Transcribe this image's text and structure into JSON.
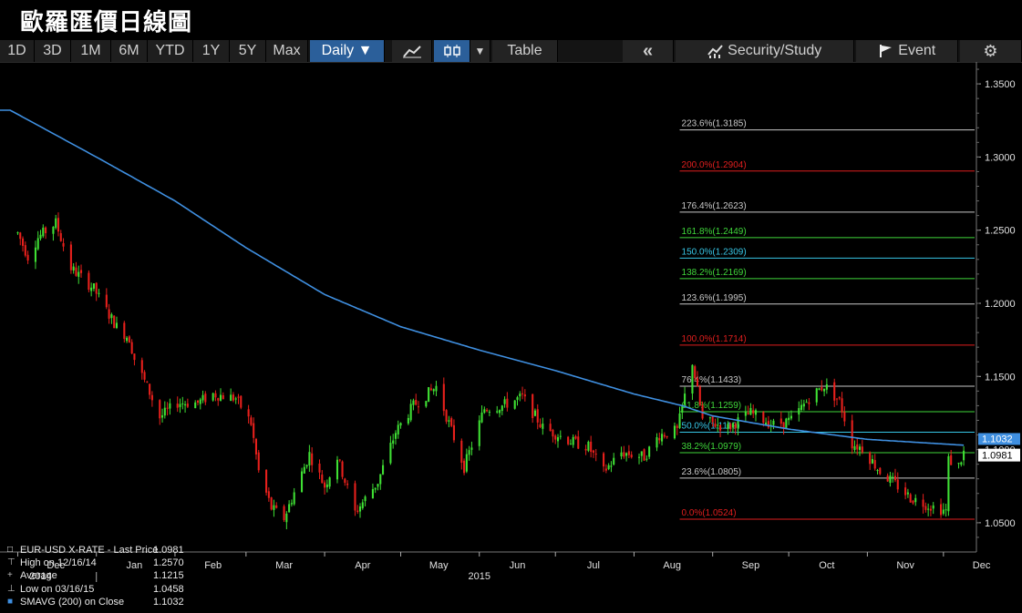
{
  "title": "歐羅匯價日線圖",
  "toolbar": {
    "periods": [
      "1D",
      "3D",
      "1M",
      "6M",
      "YTD",
      "1Y",
      "5Y",
      "Max"
    ],
    "interval": "Daily ▼",
    "chart_type_icon": "line-chart-icon",
    "candle_icon": "candlestick-icon",
    "dropdown_arrow": "▼",
    "table": "Table",
    "collapse": "«",
    "security_study": "Security/Study",
    "event": "Event",
    "settings_icon": "gear-icon"
  },
  "legend": [
    {
      "marker": "□",
      "label": "EUR-USD X-RATE - Last Price",
      "value": "1.0981"
    },
    {
      "marker": "⊤",
      "label": "High on 12/16/14",
      "value": "1.2570"
    },
    {
      "marker": "+",
      "label": "Average",
      "value": "1.1215"
    },
    {
      "marker": "⊥",
      "label": "Low on 03/16/15",
      "value": "1.0458"
    },
    {
      "marker": "■",
      "label": "SMAVG (200) on Close",
      "value": "1.1032"
    }
  ],
  "colors": {
    "background": "#000000",
    "up": "#3fe034",
    "down": "#e8201c",
    "sma": "#3f8fe0",
    "grid": "#2a2a2a",
    "fib_white": "#c8c8c8",
    "fib_red": "#e01e1e",
    "fib_green": "#3fd63a",
    "fib_cyan": "#37c6e6"
  },
  "chart_data": {
    "type": "candlestick",
    "title": "",
    "ylim": [
      1.03,
      1.365
    ],
    "y_ticks": [
      "1.3500",
      "1.3000",
      "1.2500",
      "1.2000",
      "1.1500",
      "1.1000",
      "1.0500"
    ],
    "x_month_labels": [
      "Dec",
      "Jan",
      "Feb",
      "Mar",
      "Apr",
      "May",
      "Jun",
      "Jul",
      "Aug",
      "Sep",
      "Oct",
      "Nov",
      "Dec"
    ],
    "x_year_labels": [
      "2014",
      "2015"
    ],
    "last_price_label": "1.0981",
    "sma_price_label": "1.1032",
    "fibonacci_levels": [
      {
        "label": "223.6%(1.3185)",
        "value": 1.3185,
        "color": "white"
      },
      {
        "label": "200.0%(1.2904)",
        "value": 1.2904,
        "color": "red"
      },
      {
        "label": "176.4%(1.2623)",
        "value": 1.2623,
        "color": "white"
      },
      {
        "label": "161.8%(1.2449)",
        "value": 1.2449,
        "color": "green"
      },
      {
        "label": "150.0%(1.2309)",
        "value": 1.2309,
        "color": "cyan"
      },
      {
        "label": "138.2%(1.2169)",
        "value": 1.2169,
        "color": "green"
      },
      {
        "label": "123.6%(1.1995)",
        "value": 1.1995,
        "color": "white"
      },
      {
        "label": "100.0%(1.1714)",
        "value": 1.1714,
        "color": "red"
      },
      {
        "label": "76.4%(1.1433)",
        "value": 1.1433,
        "color": "white"
      },
      {
        "label": "61.8%(1.1259)",
        "value": 1.1259,
        "color": "green"
      },
      {
        "label": "50.0%(1.1119)",
        "value": 1.1119,
        "color": "cyan"
      },
      {
        "label": "38.2%(1.0979)",
        "value": 1.0979,
        "color": "green"
      },
      {
        "label": "23.6%(1.0805)",
        "value": 1.0805,
        "color": "white"
      },
      {
        "label": "0.0%(1.0524)",
        "value": 1.0524,
        "color": "red"
      }
    ],
    "price_anchors": [
      [
        "2014-12-01",
        1.248
      ],
      [
        "2014-12-05",
        1.232
      ],
      [
        "2014-12-09",
        1.245
      ],
      [
        "2014-12-16",
        1.255
      ],
      [
        "2014-12-22",
        1.224
      ],
      [
        "2014-12-31",
        1.21
      ],
      [
        "2015-01-05",
        1.195
      ],
      [
        "2015-01-09",
        1.184
      ],
      [
        "2015-01-14",
        1.176
      ],
      [
        "2015-01-16",
        1.162
      ],
      [
        "2015-01-22",
        1.139
      ],
      [
        "2015-01-26",
        1.122
      ],
      [
        "2015-02-02",
        1.132
      ],
      [
        "2015-02-10",
        1.132
      ],
      [
        "2015-02-16",
        1.138
      ],
      [
        "2015-02-25",
        1.135
      ],
      [
        "2015-03-03",
        1.118
      ],
      [
        "2015-03-06",
        1.085
      ],
      [
        "2015-03-11",
        1.06
      ],
      [
        "2015-03-16",
        1.053
      ],
      [
        "2015-03-26",
        1.097
      ],
      [
        "2015-04-01",
        1.075
      ],
      [
        "2015-04-06",
        1.095
      ],
      [
        "2015-04-13",
        1.057
      ],
      [
        "2015-04-22",
        1.078
      ],
      [
        "2015-04-29",
        1.112
      ],
      [
        "2015-05-06",
        1.13
      ],
      [
        "2015-05-15",
        1.143
      ],
      [
        "2015-05-26",
        1.088
      ],
      [
        "2015-06-03",
        1.128
      ],
      [
        "2015-06-10",
        1.13
      ],
      [
        "2015-06-18",
        1.136
      ],
      [
        "2015-06-26",
        1.115
      ],
      [
        "2015-07-08",
        1.105
      ],
      [
        "2015-07-14",
        1.102
      ],
      [
        "2015-07-20",
        1.085
      ],
      [
        "2015-07-27",
        1.098
      ],
      [
        "2015-08-05",
        1.095
      ],
      [
        "2015-08-11",
        1.11
      ],
      [
        "2015-08-18",
        1.113
      ],
      [
        "2015-08-24",
        1.16
      ],
      [
        "2015-08-28",
        1.12
      ],
      [
        "2015-09-07",
        1.115
      ],
      [
        "2015-09-16",
        1.125
      ],
      [
        "2015-09-25",
        1.117
      ],
      [
        "2015-10-02",
        1.12
      ],
      [
        "2015-10-09",
        1.135
      ],
      [
        "2015-10-15",
        1.144
      ],
      [
        "2015-10-21",
        1.133
      ],
      [
        "2015-10-26",
        1.104
      ],
      [
        "2015-10-30",
        1.101
      ],
      [
        "2015-11-06",
        1.085
      ],
      [
        "2015-11-13",
        1.075
      ],
      [
        "2015-11-18",
        1.067
      ],
      [
        "2015-11-25",
        1.062
      ],
      [
        "2015-12-02",
        1.058
      ],
      [
        "2015-12-03",
        1.093
      ],
      [
        "2015-12-07",
        1.089
      ],
      [
        "2015-12-09",
        1.098
      ]
    ],
    "sma_anchors": [
      [
        "2014-11-28",
        1.332
      ],
      [
        "2015-01-01",
        1.3
      ],
      [
        "2015-02-01",
        1.27
      ],
      [
        "2015-03-01",
        1.238
      ],
      [
        "2015-04-01",
        1.206
      ],
      [
        "2015-05-01",
        1.184
      ],
      [
        "2015-06-01",
        1.168
      ],
      [
        "2015-07-01",
        1.154
      ],
      [
        "2015-08-01",
        1.138
      ],
      [
        "2015-08-20",
        1.13
      ],
      [
        "2015-09-01",
        1.123
      ],
      [
        "2015-10-01",
        1.114
      ],
      [
        "2015-11-01",
        1.107
      ],
      [
        "2015-12-09",
        1.103
      ]
    ]
  }
}
